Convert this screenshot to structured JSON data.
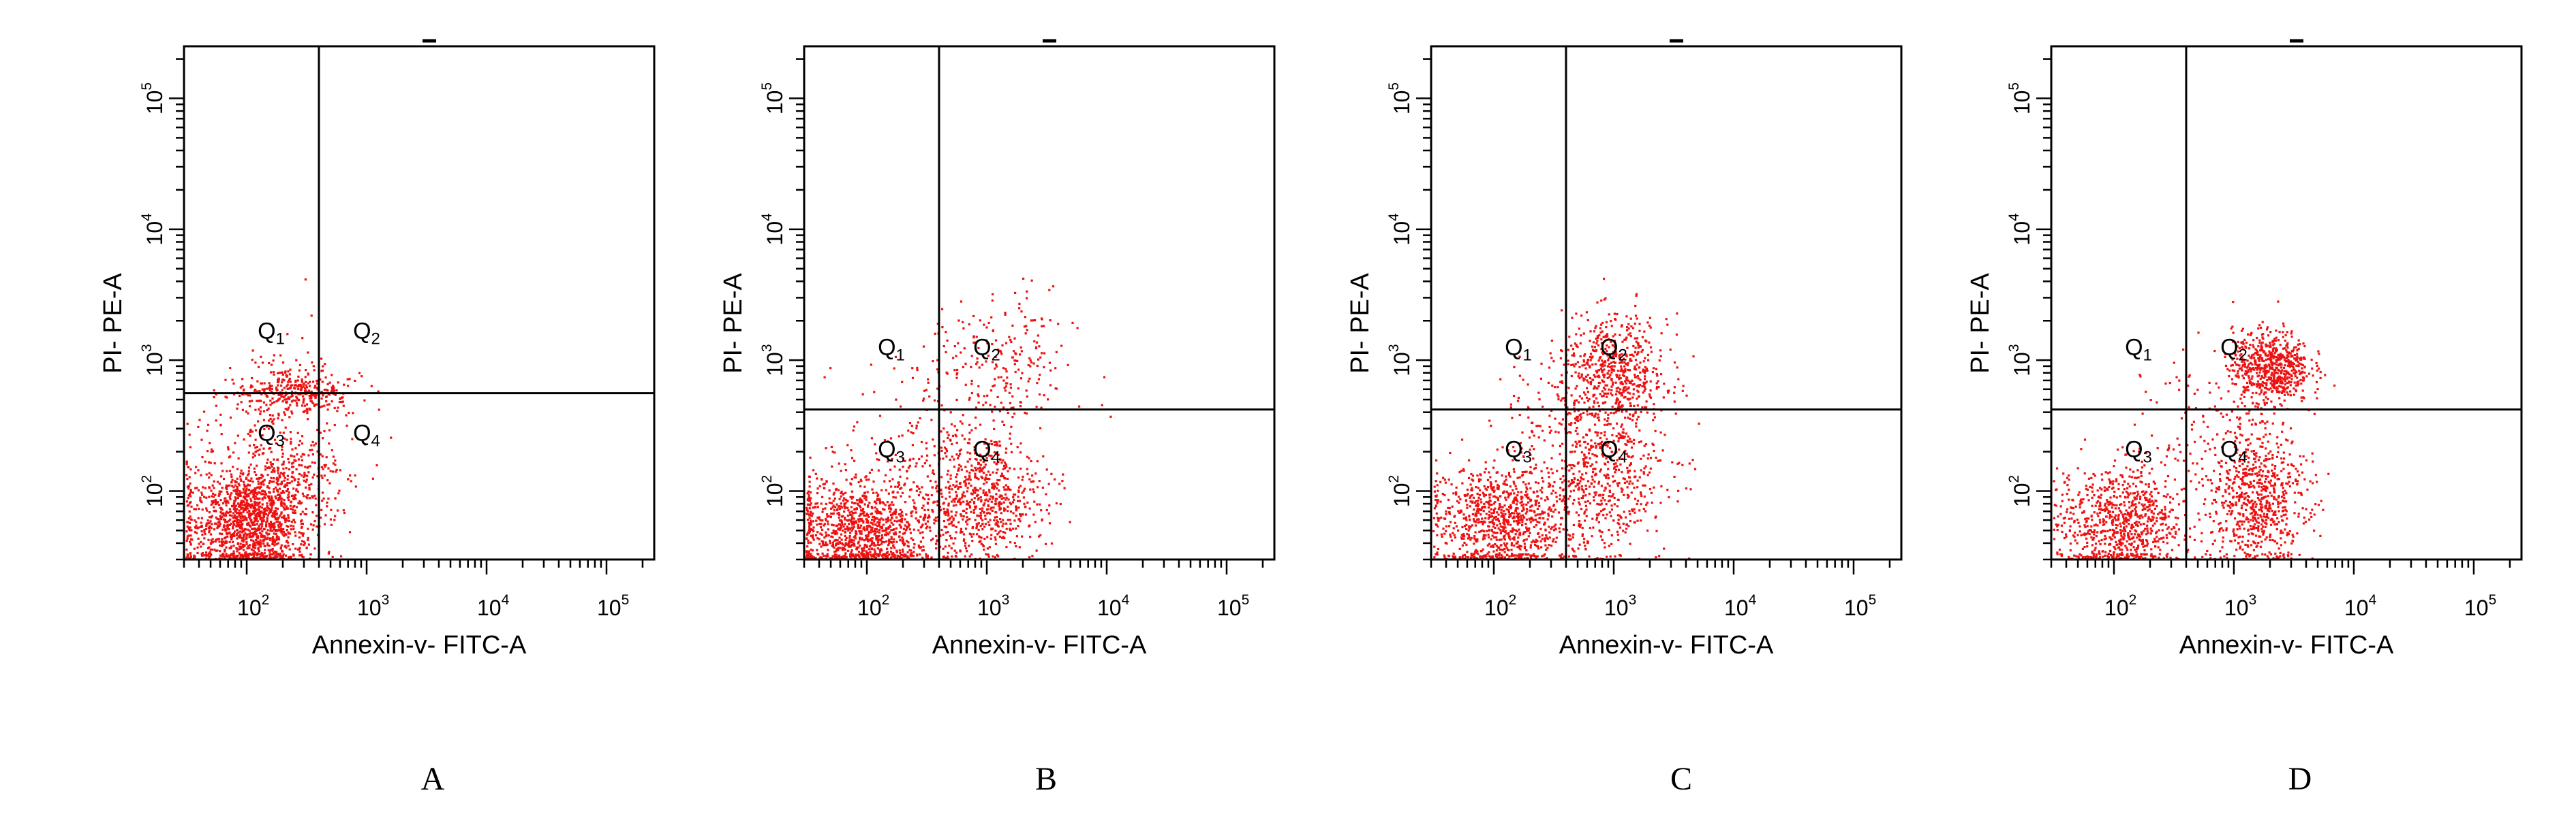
{
  "figure": {
    "panel_letters": [
      "A",
      "B",
      "C",
      "D"
    ]
  },
  "colors": {
    "dots": "#ee1111",
    "axes": "#000000",
    "background": "#ffffff"
  },
  "chart_data": [
    {
      "type": "scatter",
      "panel": "A",
      "xlabel": "Annexin-v- FITC-A",
      "ylabel": "PI- PE-A",
      "x_scale": "log10",
      "y_scale": "log10",
      "xlim": [
        30,
        250000
      ],
      "ylim": [
        30,
        250000
      ],
      "x_ticks": [
        {
          "label": "10",
          "exp": "2",
          "value": 100
        },
        {
          "label": "10",
          "exp": "3",
          "value": 1000
        },
        {
          "label": "10",
          "exp": "4",
          "value": 10000
        },
        {
          "label": "10",
          "exp": "5",
          "value": 100000
        }
      ],
      "y_ticks": [
        {
          "label": "10",
          "exp": "2",
          "value": 100
        },
        {
          "label": "10",
          "exp": "3",
          "value": 1000
        },
        {
          "label": "10",
          "exp": "4",
          "value": 10000
        },
        {
          "label": "10",
          "exp": "5",
          "value": 100000
        }
      ],
      "gate": {
        "x": 400,
        "y": 560
      },
      "quadrants": {
        "Q1": {
          "label": "Q",
          "sub": "1"
        },
        "Q2": {
          "label": "Q",
          "sub": "2"
        },
        "Q3": {
          "label": "Q",
          "sub": "3"
        },
        "Q4": {
          "label": "Q",
          "sub": "4"
        }
      },
      "clusters": [
        {
          "x": 100,
          "y": 60,
          "spread_x": 0.26,
          "spread_y": 0.22,
          "count": 1400
        },
        {
          "x": 250,
          "y": 580,
          "spread_x": 0.22,
          "spread_y": 0.09,
          "count": 320
        },
        {
          "x": 280,
          "y": 140,
          "spread_x": 0.25,
          "spread_y": 0.22,
          "count": 200
        },
        {
          "x": 150,
          "y": 300,
          "spread_x": 0.35,
          "spread_y": 0.3,
          "count": 140
        }
      ]
    },
    {
      "type": "scatter",
      "panel": "B",
      "xlabel": "Annexin-v- FITC-A",
      "ylabel": "PI- PE-A",
      "x_scale": "log10",
      "y_scale": "log10",
      "xlim": [
        30,
        250000
      ],
      "ylim": [
        30,
        250000
      ],
      "x_ticks": [
        {
          "label": "10",
          "exp": "2",
          "value": 100
        },
        {
          "label": "10",
          "exp": "3",
          "value": 1000
        },
        {
          "label": "10",
          "exp": "4",
          "value": 10000
        },
        {
          "label": "10",
          "exp": "5",
          "value": 100000
        }
      ],
      "y_ticks": [
        {
          "label": "10",
          "exp": "2",
          "value": 100
        },
        {
          "label": "10",
          "exp": "3",
          "value": 1000
        },
        {
          "label": "10",
          "exp": "4",
          "value": 10000
        },
        {
          "label": "10",
          "exp": "5",
          "value": 100000
        }
      ],
      "gate": {
        "x": 400,
        "y": 420
      },
      "quadrants": {
        "Q1": {
          "label": "Q",
          "sub": "1"
        },
        "Q2": {
          "label": "Q",
          "sub": "2"
        },
        "Q3": {
          "label": "Q",
          "sub": "3"
        },
        "Q4": {
          "label": "Q",
          "sub": "4"
        }
      },
      "clusters": [
        {
          "x": 90,
          "y": 50,
          "spread_x": 0.3,
          "spread_y": 0.2,
          "count": 1100
        },
        {
          "x": 900,
          "y": 90,
          "spread_x": 0.25,
          "spread_y": 0.22,
          "count": 650
        },
        {
          "x": 1300,
          "y": 900,
          "spread_x": 0.3,
          "spread_y": 0.28,
          "count": 220
        },
        {
          "x": 350,
          "y": 250,
          "spread_x": 0.35,
          "spread_y": 0.3,
          "count": 160
        }
      ]
    },
    {
      "type": "scatter",
      "panel": "C",
      "xlabel": "Annexin-v- FITC-A",
      "ylabel": "PI- PE-A",
      "x_scale": "log10",
      "y_scale": "log10",
      "xlim": [
        30,
        250000
      ],
      "ylim": [
        30,
        250000
      ],
      "x_ticks": [
        {
          "label": "10",
          "exp": "2",
          "value": 100
        },
        {
          "label": "10",
          "exp": "3",
          "value": 1000
        },
        {
          "label": "10",
          "exp": "4",
          "value": 10000
        },
        {
          "label": "10",
          "exp": "5",
          "value": 100000
        }
      ],
      "y_ticks": [
        {
          "label": "10",
          "exp": "2",
          "value": 100
        },
        {
          "label": "10",
          "exp": "3",
          "value": 1000
        },
        {
          "label": "10",
          "exp": "4",
          "value": 10000
        },
        {
          "label": "10",
          "exp": "5",
          "value": 100000
        }
      ],
      "gate": {
        "x": 400,
        "y": 420
      },
      "quadrants": {
        "Q1": {
          "label": "Q",
          "sub": "1"
        },
        "Q2": {
          "label": "Q",
          "sub": "2"
        },
        "Q3": {
          "label": "Q",
          "sub": "3"
        },
        "Q4": {
          "label": "Q",
          "sub": "4"
        }
      },
      "clusters": [
        {
          "x": 110,
          "y": 60,
          "spread_x": 0.28,
          "spread_y": 0.22,
          "count": 900
        },
        {
          "x": 1000,
          "y": 800,
          "spread_x": 0.22,
          "spread_y": 0.22,
          "count": 600
        },
        {
          "x": 800,
          "y": 120,
          "spread_x": 0.28,
          "spread_y": 0.28,
          "count": 520
        },
        {
          "x": 400,
          "y": 300,
          "spread_x": 0.3,
          "spread_y": 0.3,
          "count": 150
        }
      ]
    },
    {
      "type": "scatter",
      "panel": "D",
      "xlabel": "Annexin-v- FITC-A",
      "ylabel": "PI- PE-A",
      "x_scale": "log10",
      "y_scale": "log10",
      "xlim": [
        30,
        250000
      ],
      "ylim": [
        30,
        250000
      ],
      "x_ticks": [
        {
          "label": "10",
          "exp": "2",
          "value": 100
        },
        {
          "label": "10",
          "exp": "3",
          "value": 1000
        },
        {
          "label": "10",
          "exp": "4",
          "value": 10000
        },
        {
          "label": "10",
          "exp": "5",
          "value": 100000
        }
      ],
      "y_ticks": [
        {
          "label": "10",
          "exp": "2",
          "value": 100
        },
        {
          "label": "10",
          "exp": "3",
          "value": 1000
        },
        {
          "label": "10",
          "exp": "4",
          "value": 10000
        },
        {
          "label": "10",
          "exp": "5",
          "value": 100000
        }
      ],
      "gate": {
        "x": 400,
        "y": 420
      },
      "quadrants": {
        "Q1": {
          "label": "Q",
          "sub": "1"
        },
        "Q2": {
          "label": "Q",
          "sub": "2"
        },
        "Q3": {
          "label": "Q",
          "sub": "3"
        },
        "Q4": {
          "label": "Q",
          "sub": "4"
        }
      },
      "clusters": [
        {
          "x": 110,
          "y": 60,
          "spread_x": 0.26,
          "spread_y": 0.22,
          "count": 800
        },
        {
          "x": 2000,
          "y": 900,
          "spread_x": 0.16,
          "spread_y": 0.14,
          "count": 650
        },
        {
          "x": 1500,
          "y": 90,
          "spread_x": 0.2,
          "spread_y": 0.25,
          "count": 700
        },
        {
          "x": 700,
          "y": 300,
          "spread_x": 0.3,
          "spread_y": 0.3,
          "count": 140
        }
      ]
    }
  ]
}
